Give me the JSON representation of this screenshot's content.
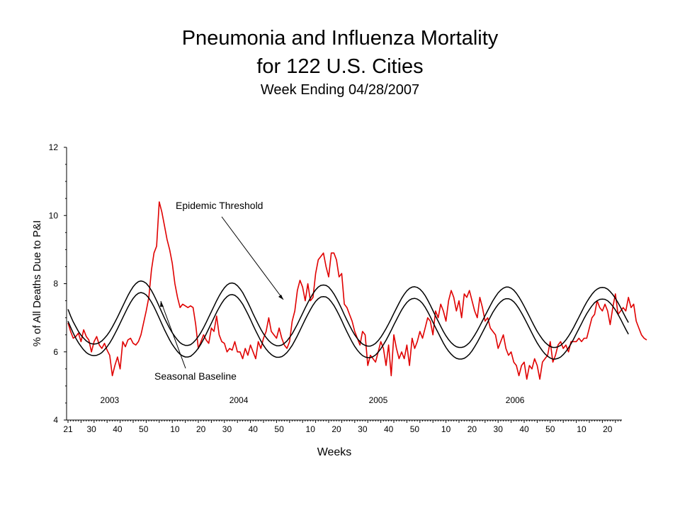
{
  "chart_data": {
    "type": "line",
    "title": [
      "Pneumonia and Influenza Mortality",
      "for 122 U.S. Cities"
    ],
    "subtitle": "Week Ending 04/28/2007",
    "xlabel": "Weeks",
    "ylabel": "% of All Deaths Due to P&I",
    "ylim": [
      4,
      12
    ],
    "yticks": [
      "4",
      "6",
      "8",
      "10",
      "12"
    ],
    "xticks": [
      "21",
      "30",
      "40",
      "50",
      "10",
      "20",
      "30",
      "40",
      "50",
      "10",
      "20",
      "30",
      "40",
      "50",
      "10",
      "20",
      "30",
      "40",
      "50",
      "10",
      "20"
    ],
    "year_labels": [
      "2003",
      "2004",
      "2005",
      "2006"
    ],
    "annotations": [
      "Epidemic Threshold",
      "Seasonal Baseline"
    ],
    "grid": false,
    "week_start": 21,
    "series": [
      {
        "color": "#e00000",
        "values": [
          6.85,
          6.6,
          6.4,
          6.45,
          6.55,
          6.3,
          6.65,
          6.45,
          6.35,
          6.0,
          6.3,
          6.45,
          6.2,
          6.1,
          6.25,
          6.05,
          5.9,
          5.3,
          5.6,
          5.85,
          5.5,
          6.3,
          6.15,
          6.35,
          6.4,
          6.25,
          6.2,
          6.3,
          6.5,
          6.85,
          7.2,
          7.6,
          8.4,
          8.9,
          9.1,
          10.4,
          10.1,
          9.7,
          9.3,
          9.0,
          8.6,
          8.0,
          7.6,
          7.3,
          7.4,
          7.35,
          7.3,
          7.35,
          7.3,
          6.8,
          6.1,
          6.3,
          6.5,
          6.35,
          6.25,
          6.7,
          6.6,
          7.05,
          6.5,
          6.3,
          6.25,
          6.0,
          6.1,
          6.05,
          6.3,
          6.0,
          6.0,
          5.8,
          6.1,
          5.9,
          6.2,
          6.0,
          5.8,
          6.3,
          6.1,
          6.4,
          6.6,
          7.0,
          6.6,
          6.5,
          6.4,
          6.7,
          6.4,
          6.2,
          6.1,
          6.3,
          6.9,
          7.2,
          7.8,
          8.1,
          7.9,
          7.5,
          8.0,
          7.5,
          7.6,
          8.3,
          8.7,
          8.8,
          8.9,
          8.5,
          8.2,
          8.9,
          8.9,
          8.7,
          8.2,
          8.3,
          7.4,
          7.3,
          7.1,
          6.9,
          6.6,
          6.4,
          6.2,
          6.6,
          6.5,
          5.6,
          5.9,
          5.8,
          5.7,
          6.0,
          6.3,
          6.1,
          5.6,
          6.2,
          5.3,
          6.5,
          6.1,
          5.8,
          6.0,
          5.8,
          6.2,
          5.6,
          6.4,
          6.1,
          6.3,
          6.6,
          6.4,
          6.7,
          7.0,
          6.9,
          6.5,
          7.2,
          7.0,
          7.4,
          7.2,
          6.9,
          7.5,
          7.8,
          7.6,
          7.2,
          7.5,
          7.0,
          7.7,
          7.6,
          7.8,
          7.5,
          7.2,
          7.0,
          7.6,
          7.3,
          6.9,
          7.0,
          6.7,
          6.6,
          6.5,
          6.1,
          6.3,
          6.5,
          6.1,
          5.9,
          6.0,
          5.7,
          5.6,
          5.3,
          5.6,
          5.7,
          5.2,
          5.6,
          5.5,
          5.8,
          5.6,
          5.2,
          5.7,
          5.8,
          5.9,
          6.3,
          5.7,
          5.9,
          6.2,
          6.3,
          6.1,
          6.2,
          6.0,
          6.3,
          6.3,
          6.3,
          6.4,
          6.3,
          6.4,
          6.4,
          6.7,
          7.0,
          7.1,
          7.5,
          7.3,
          7.2,
          7.4,
          7.2,
          6.8,
          7.3,
          7.7,
          7.1,
          7.2,
          7.3,
          7.2,
          7.6,
          7.3,
          7.4,
          6.9,
          6.7,
          6.5,
          6.4,
          6.35
        ]
      },
      {
        "color": "#000000",
        "values": [
          7.25,
          7.05,
          6.88,
          6.74,
          6.6,
          6.49,
          6.4,
          6.32,
          6.27,
          6.24,
          6.23,
          6.24,
          6.27,
          6.32,
          6.4,
          6.49,
          6.6,
          6.73,
          6.87,
          7.02,
          7.18,
          7.34,
          7.5,
          7.65,
          7.79,
          7.91,
          8.0,
          8.06,
          8.08,
          8.06,
          8.01,
          7.92,
          7.8,
          7.66,
          7.5,
          7.33,
          7.16,
          6.99,
          6.84,
          6.69,
          6.56,
          6.45,
          6.35,
          6.27,
          6.22,
          6.19,
          6.19,
          6.21,
          6.27,
          6.35,
          6.45,
          6.57,
          6.71,
          6.86,
          7.02,
          7.18,
          7.34,
          7.5,
          7.64,
          7.77,
          7.88,
          7.96,
          8.01,
          8.02,
          8.0,
          7.94,
          7.85,
          7.74,
          7.6,
          7.45,
          7.29,
          7.12,
          6.96,
          6.81,
          6.66,
          6.53,
          6.42,
          6.33,
          6.26,
          6.21,
          6.18,
          6.18,
          6.2,
          6.25,
          6.32,
          6.42,
          6.53,
          6.67,
          6.81,
          6.97,
          7.13,
          7.29,
          7.44,
          7.58,
          7.71,
          7.82,
          7.9,
          7.95,
          7.96,
          7.95,
          7.9,
          7.81,
          7.7,
          7.57,
          7.42,
          7.26,
          7.09,
          6.93,
          6.78,
          6.63,
          6.5,
          6.39,
          6.3,
          6.23,
          6.19,
          6.17,
          6.17,
          6.2,
          6.25,
          6.33,
          6.43,
          6.55,
          6.68,
          6.82,
          6.97,
          7.13,
          7.28,
          7.43,
          7.57,
          7.69,
          7.79,
          7.86,
          7.9,
          7.91,
          7.89,
          7.84,
          7.76,
          7.65,
          7.52,
          7.37,
          7.21,
          7.05,
          6.9,
          6.75,
          6.6,
          6.47,
          6.36,
          6.27,
          6.2,
          6.15,
          6.13,
          6.13,
          6.15,
          6.2,
          6.27,
          6.37,
          6.49,
          6.62,
          6.76,
          6.91,
          7.06,
          7.21,
          7.36,
          7.5,
          7.62,
          7.73,
          7.81,
          7.87,
          7.9,
          7.9,
          7.87,
          7.81,
          7.72,
          7.61,
          7.48,
          7.34,
          7.19,
          7.04,
          6.89,
          6.74,
          6.6,
          6.48,
          6.37,
          6.28,
          6.21,
          6.16,
          6.13,
          6.13,
          6.15,
          6.19,
          6.26,
          6.35,
          6.46,
          6.58,
          6.72,
          6.87,
          7.02,
          7.17,
          7.32,
          7.46,
          7.58,
          7.69,
          7.78,
          7.84,
          7.88,
          7.89,
          7.88,
          7.84,
          7.77,
          7.68,
          7.57,
          7.44,
          7.3,
          7.15,
          7.0,
          6.86
        ]
      },
      {
        "color": "#000000",
        "values": [
          6.9,
          6.72,
          6.55,
          6.4,
          6.27,
          6.16,
          6.06,
          5.98,
          5.93,
          5.9,
          5.89,
          5.9,
          5.93,
          5.98,
          6.06,
          6.15,
          6.26,
          6.39,
          6.53,
          6.68,
          6.84,
          7.0,
          7.16,
          7.31,
          7.45,
          7.57,
          7.66,
          7.72,
          7.74,
          7.72,
          7.67,
          7.58,
          7.46,
          7.32,
          7.16,
          6.99,
          6.82,
          6.65,
          6.5,
          6.35,
          6.22,
          6.11,
          6.01,
          5.93,
          5.88,
          5.85,
          5.85,
          5.87,
          5.93,
          6.01,
          6.11,
          6.23,
          6.37,
          6.52,
          6.68,
          6.84,
          7.0,
          7.16,
          7.3,
          7.43,
          7.54,
          7.62,
          7.67,
          7.68,
          7.66,
          7.6,
          7.51,
          7.4,
          7.26,
          7.11,
          6.95,
          6.78,
          6.62,
          6.47,
          6.32,
          6.19,
          6.08,
          5.99,
          5.92,
          5.87,
          5.84,
          5.84,
          5.86,
          5.91,
          5.98,
          6.08,
          6.19,
          6.33,
          6.47,
          6.63,
          6.79,
          6.95,
          7.1,
          7.24,
          7.37,
          7.48,
          7.56,
          7.61,
          7.62,
          7.61,
          7.56,
          7.47,
          7.36,
          7.23,
          7.08,
          6.92,
          6.75,
          6.59,
          6.44,
          6.29,
          6.16,
          6.05,
          5.96,
          5.89,
          5.85,
          5.83,
          5.83,
          5.86,
          5.91,
          5.99,
          6.09,
          6.21,
          6.34,
          6.48,
          6.63,
          6.79,
          6.94,
          7.09,
          7.23,
          7.35,
          7.45,
          7.52,
          7.56,
          7.57,
          7.55,
          7.5,
          7.42,
          7.31,
          7.18,
          7.03,
          6.87,
          6.71,
          6.56,
          6.41,
          6.26,
          6.13,
          6.02,
          5.93,
          5.86,
          5.81,
          5.79,
          5.79,
          5.81,
          5.86,
          5.93,
          6.03,
          6.15,
          6.28,
          6.42,
          6.57,
          6.72,
          6.87,
          7.02,
          7.16,
          7.28,
          7.39,
          7.47,
          7.53,
          7.56,
          7.56,
          7.53,
          7.47,
          7.38,
          7.27,
          7.14,
          7.0,
          6.85,
          6.7,
          6.55,
          6.4,
          6.26,
          6.14,
          6.03,
          5.94,
          5.87,
          5.82,
          5.79,
          5.79,
          5.81,
          5.85,
          5.92,
          6.01,
          6.12,
          6.24,
          6.38,
          6.53,
          6.68,
          6.83,
          6.98,
          7.12,
          7.24,
          7.35,
          7.44,
          7.5,
          7.54,
          7.55,
          7.54,
          7.5,
          7.43,
          7.34,
          7.23,
          7.1,
          6.96,
          6.81,
          6.66,
          6.52
        ]
      }
    ]
  }
}
